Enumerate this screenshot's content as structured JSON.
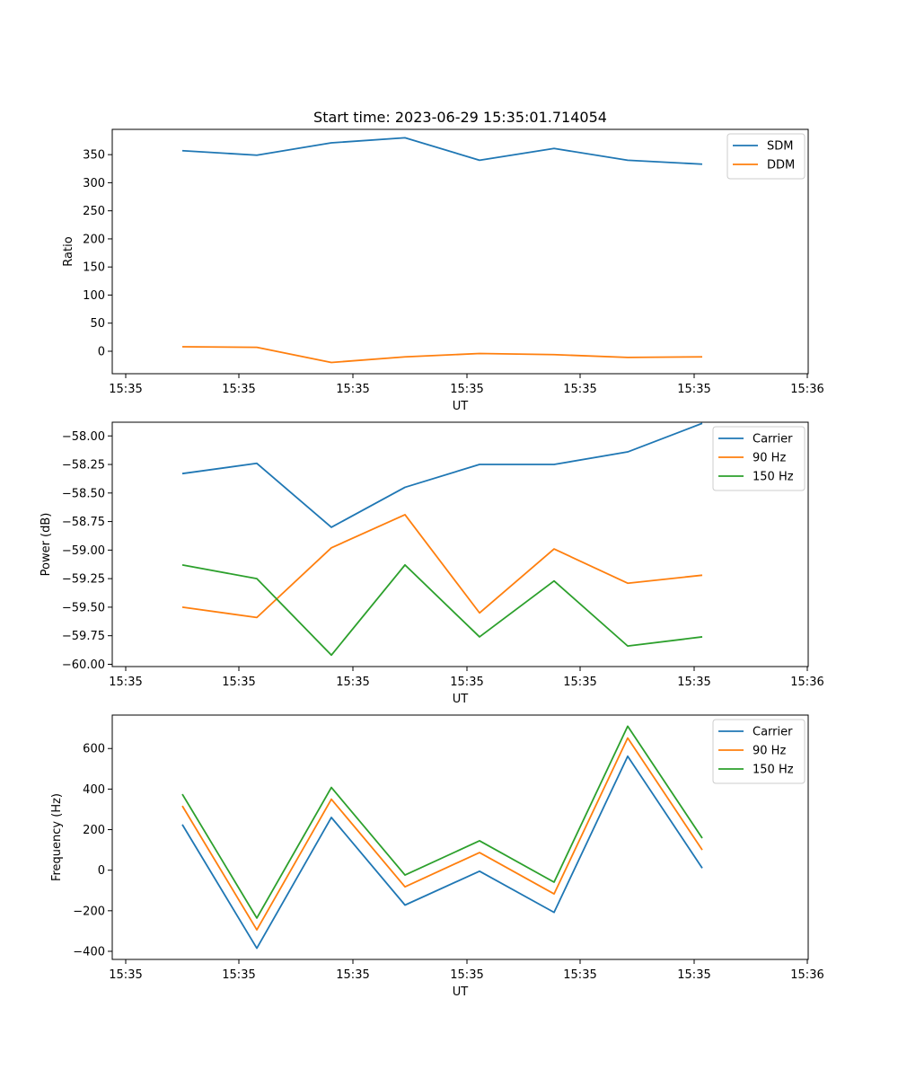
{
  "chart_data": [
    {
      "type": "line",
      "title": "Start time: 2023-06-29 15:35:01.714054",
      "xlabel": "UT",
      "ylabel": "Ratio",
      "x_tick_labels": [
        "15:35",
        "15:35",
        "15:35",
        "15:35",
        "15:35",
        "15:35",
        "15:35",
        "15:36"
      ],
      "ylim": [
        -40,
        395
      ],
      "y_ticks": [
        0,
        50,
        100,
        150,
        200,
        250,
        300,
        350
      ],
      "y_tick_labels": [
        "0",
        "50",
        "100",
        "150",
        "200",
        "250",
        "300",
        "350"
      ],
      "legend_position": "top-right",
      "series": [
        {
          "name": "SDM",
          "color": "#1f77b4",
          "values": [
            357,
            349,
            371,
            380,
            340,
            361,
            340,
            333
          ]
        },
        {
          "name": "DDM",
          "color": "#ff7f0e",
          "values": [
            8,
            7,
            -20,
            -10,
            -4,
            -6,
            -11,
            -10
          ]
        }
      ]
    },
    {
      "type": "line",
      "title": "",
      "xlabel": "UT",
      "ylabel": "Power (dB)",
      "x_tick_labels": [
        "15:35",
        "15:35",
        "15:35",
        "15:35",
        "15:35",
        "15:35",
        "15:35",
        "15:36"
      ],
      "ylim": [
        -60.02,
        -57.88
      ],
      "y_ticks": [
        -60.0,
        -59.75,
        -59.5,
        -59.25,
        -59.0,
        -58.75,
        -58.5,
        -58.25,
        -58.0
      ],
      "y_tick_labels": [
        "−60.00",
        "−59.75",
        "−59.50",
        "−59.25",
        "−59.00",
        "−58.75",
        "−58.50",
        "−58.25",
        "−58.00"
      ],
      "legend_position": "top-right",
      "series": [
        {
          "name": "Carrier",
          "color": "#1f77b4",
          "values": [
            -58.33,
            -58.24,
            -58.8,
            -58.45,
            -58.25,
            -58.25,
            -58.14,
            -57.89
          ]
        },
        {
          "name": "90 Hz",
          "color": "#ff7f0e",
          "values": [
            -59.5,
            -59.59,
            -58.98,
            -58.69,
            -59.55,
            -58.99,
            -59.29,
            -59.22
          ]
        },
        {
          "name": "150 Hz",
          "color": "#2ca02c",
          "values": [
            -59.13,
            -59.25,
            -59.92,
            -59.13,
            -59.76,
            -59.27,
            -59.84,
            -59.76
          ]
        }
      ]
    },
    {
      "type": "line",
      "title": "",
      "xlabel": "UT",
      "ylabel": "Frequency (Hz)",
      "x_tick_labels": [
        "15:35",
        "15:35",
        "15:35",
        "15:35",
        "15:35",
        "15:35",
        "15:35",
        "15:36"
      ],
      "ylim": [
        -440,
        765
      ],
      "y_ticks": [
        -400,
        -200,
        0,
        200,
        400,
        600
      ],
      "y_tick_labels": [
        "−400",
        "−200",
        "0",
        "200",
        "400",
        "600"
      ],
      "legend_position": "top-right",
      "series": [
        {
          "name": "Carrier",
          "color": "#1f77b4",
          "values": [
            225,
            -385,
            260,
            -172,
            -5,
            -208,
            562,
            10
          ]
        },
        {
          "name": "90 Hz",
          "color": "#ff7f0e",
          "values": [
            317,
            -294,
            350,
            -82,
            87,
            -117,
            652,
            100
          ]
        },
        {
          "name": "150 Hz",
          "color": "#2ca02c",
          "values": [
            375,
            -236,
            408,
            -24,
            145,
            -59,
            710,
            158
          ]
        }
      ]
    }
  ]
}
